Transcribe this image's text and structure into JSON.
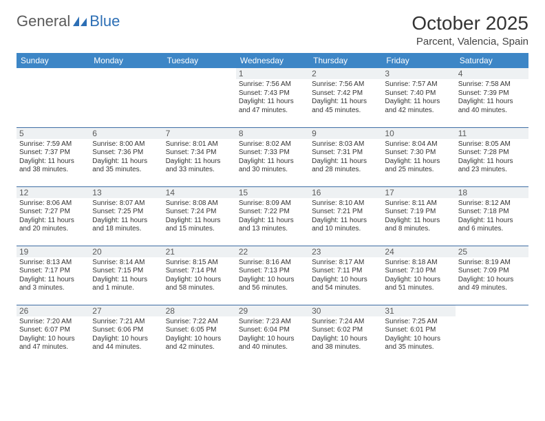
{
  "logo": {
    "general": "General",
    "blue": "Blue"
  },
  "title": "October 2025",
  "location": "Parcent, Valencia, Spain",
  "colors": {
    "header_bg": "#3d86c6",
    "header_text": "#ffffff",
    "row_divider": "#3d6ca3",
    "daynum_bg": "#eef1f3",
    "daynum_text": "#5a5a5a",
    "body_text": "#333333",
    "logo_gray": "#5a5a5a",
    "logo_blue": "#2d6fb5"
  },
  "day_headers": [
    "Sunday",
    "Monday",
    "Tuesday",
    "Wednesday",
    "Thursday",
    "Friday",
    "Saturday"
  ],
  "weeks": [
    [
      {
        "n": "",
        "sunrise": "",
        "sunset": "",
        "daylight": ""
      },
      {
        "n": "",
        "sunrise": "",
        "sunset": "",
        "daylight": ""
      },
      {
        "n": "",
        "sunrise": "",
        "sunset": "",
        "daylight": ""
      },
      {
        "n": "1",
        "sunrise": "Sunrise: 7:56 AM",
        "sunset": "Sunset: 7:43 PM",
        "daylight": "Daylight: 11 hours and 47 minutes."
      },
      {
        "n": "2",
        "sunrise": "Sunrise: 7:56 AM",
        "sunset": "Sunset: 7:42 PM",
        "daylight": "Daylight: 11 hours and 45 minutes."
      },
      {
        "n": "3",
        "sunrise": "Sunrise: 7:57 AM",
        "sunset": "Sunset: 7:40 PM",
        "daylight": "Daylight: 11 hours and 42 minutes."
      },
      {
        "n": "4",
        "sunrise": "Sunrise: 7:58 AM",
        "sunset": "Sunset: 7:39 PM",
        "daylight": "Daylight: 11 hours and 40 minutes."
      }
    ],
    [
      {
        "n": "5",
        "sunrise": "Sunrise: 7:59 AM",
        "sunset": "Sunset: 7:37 PM",
        "daylight": "Daylight: 11 hours and 38 minutes."
      },
      {
        "n": "6",
        "sunrise": "Sunrise: 8:00 AM",
        "sunset": "Sunset: 7:36 PM",
        "daylight": "Daylight: 11 hours and 35 minutes."
      },
      {
        "n": "7",
        "sunrise": "Sunrise: 8:01 AM",
        "sunset": "Sunset: 7:34 PM",
        "daylight": "Daylight: 11 hours and 33 minutes."
      },
      {
        "n": "8",
        "sunrise": "Sunrise: 8:02 AM",
        "sunset": "Sunset: 7:33 PM",
        "daylight": "Daylight: 11 hours and 30 minutes."
      },
      {
        "n": "9",
        "sunrise": "Sunrise: 8:03 AM",
        "sunset": "Sunset: 7:31 PM",
        "daylight": "Daylight: 11 hours and 28 minutes."
      },
      {
        "n": "10",
        "sunrise": "Sunrise: 8:04 AM",
        "sunset": "Sunset: 7:30 PM",
        "daylight": "Daylight: 11 hours and 25 minutes."
      },
      {
        "n": "11",
        "sunrise": "Sunrise: 8:05 AM",
        "sunset": "Sunset: 7:28 PM",
        "daylight": "Daylight: 11 hours and 23 minutes."
      }
    ],
    [
      {
        "n": "12",
        "sunrise": "Sunrise: 8:06 AM",
        "sunset": "Sunset: 7:27 PM",
        "daylight": "Daylight: 11 hours and 20 minutes."
      },
      {
        "n": "13",
        "sunrise": "Sunrise: 8:07 AM",
        "sunset": "Sunset: 7:25 PM",
        "daylight": "Daylight: 11 hours and 18 minutes."
      },
      {
        "n": "14",
        "sunrise": "Sunrise: 8:08 AM",
        "sunset": "Sunset: 7:24 PM",
        "daylight": "Daylight: 11 hours and 15 minutes."
      },
      {
        "n": "15",
        "sunrise": "Sunrise: 8:09 AM",
        "sunset": "Sunset: 7:22 PM",
        "daylight": "Daylight: 11 hours and 13 minutes."
      },
      {
        "n": "16",
        "sunrise": "Sunrise: 8:10 AM",
        "sunset": "Sunset: 7:21 PM",
        "daylight": "Daylight: 11 hours and 10 minutes."
      },
      {
        "n": "17",
        "sunrise": "Sunrise: 8:11 AM",
        "sunset": "Sunset: 7:19 PM",
        "daylight": "Daylight: 11 hours and 8 minutes."
      },
      {
        "n": "18",
        "sunrise": "Sunrise: 8:12 AM",
        "sunset": "Sunset: 7:18 PM",
        "daylight": "Daylight: 11 hours and 6 minutes."
      }
    ],
    [
      {
        "n": "19",
        "sunrise": "Sunrise: 8:13 AM",
        "sunset": "Sunset: 7:17 PM",
        "daylight": "Daylight: 11 hours and 3 minutes."
      },
      {
        "n": "20",
        "sunrise": "Sunrise: 8:14 AM",
        "sunset": "Sunset: 7:15 PM",
        "daylight": "Daylight: 11 hours and 1 minute."
      },
      {
        "n": "21",
        "sunrise": "Sunrise: 8:15 AM",
        "sunset": "Sunset: 7:14 PM",
        "daylight": "Daylight: 10 hours and 58 minutes."
      },
      {
        "n": "22",
        "sunrise": "Sunrise: 8:16 AM",
        "sunset": "Sunset: 7:13 PM",
        "daylight": "Daylight: 10 hours and 56 minutes."
      },
      {
        "n": "23",
        "sunrise": "Sunrise: 8:17 AM",
        "sunset": "Sunset: 7:11 PM",
        "daylight": "Daylight: 10 hours and 54 minutes."
      },
      {
        "n": "24",
        "sunrise": "Sunrise: 8:18 AM",
        "sunset": "Sunset: 7:10 PM",
        "daylight": "Daylight: 10 hours and 51 minutes."
      },
      {
        "n": "25",
        "sunrise": "Sunrise: 8:19 AM",
        "sunset": "Sunset: 7:09 PM",
        "daylight": "Daylight: 10 hours and 49 minutes."
      }
    ],
    [
      {
        "n": "26",
        "sunrise": "Sunrise: 7:20 AM",
        "sunset": "Sunset: 6:07 PM",
        "daylight": "Daylight: 10 hours and 47 minutes."
      },
      {
        "n": "27",
        "sunrise": "Sunrise: 7:21 AM",
        "sunset": "Sunset: 6:06 PM",
        "daylight": "Daylight: 10 hours and 44 minutes."
      },
      {
        "n": "28",
        "sunrise": "Sunrise: 7:22 AM",
        "sunset": "Sunset: 6:05 PM",
        "daylight": "Daylight: 10 hours and 42 minutes."
      },
      {
        "n": "29",
        "sunrise": "Sunrise: 7:23 AM",
        "sunset": "Sunset: 6:04 PM",
        "daylight": "Daylight: 10 hours and 40 minutes."
      },
      {
        "n": "30",
        "sunrise": "Sunrise: 7:24 AM",
        "sunset": "Sunset: 6:02 PM",
        "daylight": "Daylight: 10 hours and 38 minutes."
      },
      {
        "n": "31",
        "sunrise": "Sunrise: 7:25 AM",
        "sunset": "Sunset: 6:01 PM",
        "daylight": "Daylight: 10 hours and 35 minutes."
      },
      {
        "n": "",
        "sunrise": "",
        "sunset": "",
        "daylight": ""
      }
    ]
  ]
}
